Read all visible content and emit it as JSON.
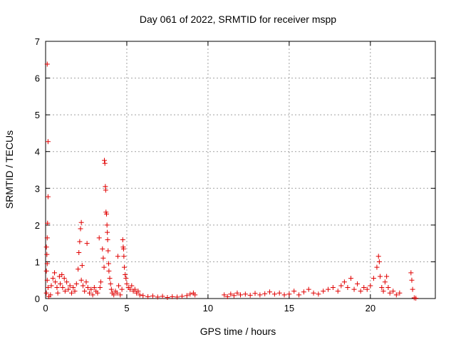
{
  "chart_data": {
    "type": "scatter",
    "title": "Day 061 of 2022, SRMTID for receiver mspp",
    "xlabel": "GPS time / hours",
    "ylabel": "SRMTID / TECUs",
    "xlim": [
      0,
      24
    ],
    "ylim": [
      0,
      7
    ],
    "xticks": [
      0,
      5,
      10,
      15,
      20
    ],
    "yticks": [
      0,
      1,
      2,
      3,
      4,
      5,
      6,
      7
    ],
    "grid": true,
    "marker": "plus",
    "color": "#e00000",
    "series": [
      {
        "name": "SRMTID",
        "points": [
          [
            0.1,
            6.38
          ],
          [
            0.15,
            4.27
          ],
          [
            0.15,
            2.77
          ],
          [
            0.12,
            2.05
          ],
          [
            0.1,
            1.65
          ],
          [
            0.05,
            1.4
          ],
          [
            0.08,
            1.2
          ],
          [
            0.1,
            0.95
          ],
          [
            0.05,
            0.75
          ],
          [
            0.1,
            0.5
          ],
          [
            0.15,
            0.3
          ],
          [
            0.05,
            0.15
          ],
          [
            0.2,
            0.05
          ],
          [
            0.3,
            0.1
          ],
          [
            0.35,
            0.35
          ],
          [
            0.45,
            0.55
          ],
          [
            0.55,
            0.7
          ],
          [
            0.6,
            0.45
          ],
          [
            0.7,
            0.3
          ],
          [
            0.75,
            0.15
          ],
          [
            0.85,
            0.6
          ],
          [
            0.9,
            0.4
          ],
          [
            1.0,
            0.65
          ],
          [
            1.05,
            0.3
          ],
          [
            1.15,
            0.55
          ],
          [
            1.2,
            0.2
          ],
          [
            1.3,
            0.45
          ],
          [
            1.4,
            0.25
          ],
          [
            1.5,
            0.35
          ],
          [
            1.6,
            0.15
          ],
          [
            1.7,
            0.3
          ],
          [
            1.8,
            0.2
          ],
          [
            1.9,
            0.4
          ],
          [
            2.0,
            0.8
          ],
          [
            2.05,
            1.25
          ],
          [
            2.1,
            1.55
          ],
          [
            2.15,
            1.9
          ],
          [
            2.2,
            2.07
          ],
          [
            2.2,
            0.5
          ],
          [
            2.25,
            0.9
          ],
          [
            2.3,
            0.35
          ],
          [
            2.4,
            0.2
          ],
          [
            2.5,
            0.45
          ],
          [
            2.55,
            1.5
          ],
          [
            2.6,
            0.3
          ],
          [
            2.7,
            0.15
          ],
          [
            2.8,
            0.25
          ],
          [
            2.9,
            0.1
          ],
          [
            3.0,
            0.3
          ],
          [
            3.1,
            0.2
          ],
          [
            3.2,
            0.15
          ],
          [
            3.3,
            1.65
          ],
          [
            3.35,
            0.3
          ],
          [
            3.4,
            0.45
          ],
          [
            3.5,
            1.35
          ],
          [
            3.55,
            1.1
          ],
          [
            3.6,
            0.85
          ],
          [
            3.62,
            3.76
          ],
          [
            3.65,
            3.68
          ],
          [
            3.68,
            3.05
          ],
          [
            3.7,
            2.95
          ],
          [
            3.72,
            2.35
          ],
          [
            3.75,
            2.3
          ],
          [
            3.78,
            2.0
          ],
          [
            3.8,
            1.8
          ],
          [
            3.82,
            1.6
          ],
          [
            3.85,
            1.3
          ],
          [
            3.88,
            0.95
          ],
          [
            3.9,
            0.75
          ],
          [
            3.95,
            0.55
          ],
          [
            4.0,
            0.4
          ],
          [
            4.05,
            0.25
          ],
          [
            4.1,
            0.15
          ],
          [
            4.2,
            0.1
          ],
          [
            4.3,
            0.2
          ],
          [
            4.4,
            0.15
          ],
          [
            4.45,
            1.15
          ],
          [
            4.5,
            0.35
          ],
          [
            4.6,
            0.1
          ],
          [
            4.7,
            0.25
          ],
          [
            4.75,
            1.6
          ],
          [
            4.78,
            1.4
          ],
          [
            4.8,
            1.35
          ],
          [
            4.82,
            1.15
          ],
          [
            4.85,
            0.85
          ],
          [
            4.9,
            0.65
          ],
          [
            4.95,
            0.55
          ],
          [
            5.0,
            0.4
          ],
          [
            5.1,
            0.3
          ],
          [
            5.2,
            0.25
          ],
          [
            5.3,
            0.35
          ],
          [
            5.4,
            0.2
          ],
          [
            5.5,
            0.25
          ],
          [
            5.6,
            0.15
          ],
          [
            5.7,
            0.2
          ],
          [
            5.8,
            0.1
          ],
          [
            6.0,
            0.08
          ],
          [
            6.3,
            0.05
          ],
          [
            6.6,
            0.07
          ],
          [
            6.9,
            0.04
          ],
          [
            7.2,
            0.06
          ],
          [
            7.5,
            0.03
          ],
          [
            7.8,
            0.05
          ],
          [
            8.1,
            0.04
          ],
          [
            8.4,
            0.06
          ],
          [
            8.7,
            0.08
          ],
          [
            8.9,
            0.12
          ],
          [
            9.1,
            0.15
          ],
          [
            9.2,
            0.1
          ],
          [
            11.0,
            0.1
          ],
          [
            11.2,
            0.05
          ],
          [
            11.4,
            0.12
          ],
          [
            11.6,
            0.08
          ],
          [
            11.8,
            0.15
          ],
          [
            12.0,
            0.1
          ],
          [
            12.3,
            0.12
          ],
          [
            12.6,
            0.09
          ],
          [
            12.9,
            0.14
          ],
          [
            13.2,
            0.1
          ],
          [
            13.5,
            0.13
          ],
          [
            13.8,
            0.18
          ],
          [
            14.1,
            0.12
          ],
          [
            14.4,
            0.15
          ],
          [
            14.7,
            0.1
          ],
          [
            15.0,
            0.12
          ],
          [
            15.3,
            0.2
          ],
          [
            15.6,
            0.1
          ],
          [
            15.9,
            0.18
          ],
          [
            16.2,
            0.25
          ],
          [
            16.5,
            0.15
          ],
          [
            16.8,
            0.12
          ],
          [
            17.1,
            0.2
          ],
          [
            17.4,
            0.25
          ],
          [
            17.7,
            0.3
          ],
          [
            18.0,
            0.2
          ],
          [
            18.2,
            0.35
          ],
          [
            18.4,
            0.45
          ],
          [
            18.6,
            0.3
          ],
          [
            18.8,
            0.55
          ],
          [
            19.0,
            0.25
          ],
          [
            19.2,
            0.4
          ],
          [
            19.4,
            0.2
          ],
          [
            19.6,
            0.3
          ],
          [
            19.8,
            0.25
          ],
          [
            20.0,
            0.35
          ],
          [
            20.2,
            0.55
          ],
          [
            20.4,
            0.85
          ],
          [
            20.5,
            1.15
          ],
          [
            20.55,
            1.0
          ],
          [
            20.6,
            0.6
          ],
          [
            20.7,
            0.3
          ],
          [
            20.8,
            0.2
          ],
          [
            20.9,
            0.45
          ],
          [
            21.0,
            0.6
          ],
          [
            21.1,
            0.3
          ],
          [
            21.2,
            0.15
          ],
          [
            21.4,
            0.2
          ],
          [
            21.6,
            0.1
          ],
          [
            21.8,
            0.15
          ],
          [
            22.5,
            0.7
          ],
          [
            22.55,
            0.5
          ],
          [
            22.6,
            0.25
          ],
          [
            22.7,
            0.02
          ],
          [
            22.8,
            0.01
          ]
        ]
      }
    ]
  }
}
